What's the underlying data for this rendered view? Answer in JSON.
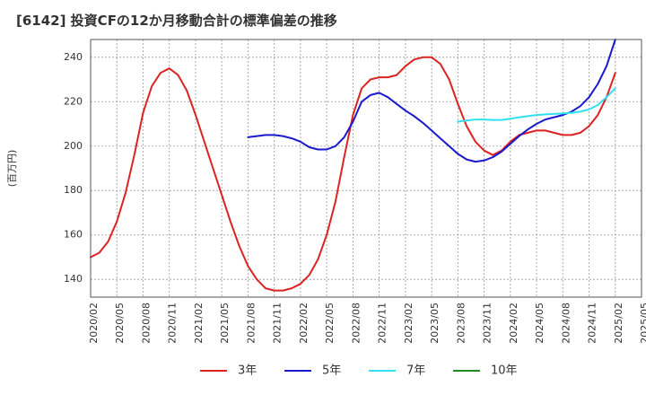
{
  "title": "[6142]  投資CFの12か月移動合計の標準偏差の推移",
  "chart_data": {
    "type": "line",
    "title": "[6142]  投資CFの12か月移動合計の標準偏差の推移",
    "xlabel": "",
    "ylabel": "(百万円)",
    "x_ticks": [
      "2020/02",
      "2020/05",
      "2020/08",
      "2020/11",
      "2021/02",
      "2021/05",
      "2021/08",
      "2021/11",
      "2022/02",
      "2022/05",
      "2022/08",
      "2022/11",
      "2023/02",
      "2023/05",
      "2023/08",
      "2023/11",
      "2024/02",
      "2024/05",
      "2024/08",
      "2024/11",
      "2025/02",
      "2025/05"
    ],
    "y_ticks": [
      140,
      160,
      180,
      200,
      220,
      240
    ],
    "xlim": [
      "2020/02",
      "2025/05"
    ],
    "ylim": [
      132,
      248
    ],
    "grid": true,
    "legend_position": "bottom",
    "series": [
      {
        "name": "3年",
        "color": "#dd2222",
        "points": [
          [
            "2020/02",
            150
          ],
          [
            "2020/03",
            152
          ],
          [
            "2020/04",
            157
          ],
          [
            "2020/05",
            166
          ],
          [
            "2020/06",
            179
          ],
          [
            "2020/07",
            196
          ],
          [
            "2020/08",
            215
          ],
          [
            "2020/09",
            227
          ],
          [
            "2020/10",
            233
          ],
          [
            "2020/11",
            235
          ],
          [
            "2020/12",
            232
          ],
          [
            "2021/01",
            225
          ],
          [
            "2021/02",
            214
          ],
          [
            "2021/03",
            202
          ],
          [
            "2021/04",
            190
          ],
          [
            "2021/05",
            178
          ],
          [
            "2021/06",
            166
          ],
          [
            "2021/07",
            155
          ],
          [
            "2021/08",
            146
          ],
          [
            "2021/09",
            140
          ],
          [
            "2021/10",
            136
          ],
          [
            "2021/11",
            135
          ],
          [
            "2021/12",
            135
          ],
          [
            "2022/01",
            136
          ],
          [
            "2022/02",
            138
          ],
          [
            "2022/03",
            142
          ],
          [
            "2022/04",
            149
          ],
          [
            "2022/05",
            160
          ],
          [
            "2022/06",
            175
          ],
          [
            "2022/07",
            195
          ],
          [
            "2022/08",
            214
          ],
          [
            "2022/09",
            226
          ],
          [
            "2022/10",
            230
          ],
          [
            "2022/11",
            231
          ],
          [
            "2022/12",
            231
          ],
          [
            "2023/01",
            232
          ],
          [
            "2023/02",
            236
          ],
          [
            "2023/03",
            239
          ],
          [
            "2023/04",
            240
          ],
          [
            "2023/05",
            240
          ],
          [
            "2023/06",
            237
          ],
          [
            "2023/07",
            230
          ],
          [
            "2023/08",
            219
          ],
          [
            "2023/09",
            209
          ],
          [
            "2023/10",
            202
          ],
          [
            "2023/11",
            198
          ],
          [
            "2023/12",
            196
          ],
          [
            "2024/01",
            198
          ],
          [
            "2024/02",
            202
          ],
          [
            "2024/03",
            205
          ],
          [
            "2024/04",
            206
          ],
          [
            "2024/05",
            207
          ],
          [
            "2024/06",
            207
          ],
          [
            "2024/07",
            206
          ],
          [
            "2024/08",
            205
          ],
          [
            "2024/09",
            205
          ],
          [
            "2024/10",
            206
          ],
          [
            "2024/11",
            209
          ],
          [
            "2024/12",
            214
          ],
          [
            "2025/01",
            222
          ],
          [
            "2025/02",
            233
          ]
        ]
      },
      {
        "name": "5年",
        "color": "#1a1acc",
        "points": [
          [
            "2021/08",
            204
          ],
          [
            "2021/09",
            204.5
          ],
          [
            "2021/10",
            205
          ],
          [
            "2021/11",
            205
          ],
          [
            "2021/12",
            204.5
          ],
          [
            "2022/01",
            203.5
          ],
          [
            "2022/02",
            202
          ],
          [
            "2022/03",
            199.5
          ],
          [
            "2022/04",
            198.5
          ],
          [
            "2022/05",
            198.5
          ],
          [
            "2022/06",
            200
          ],
          [
            "2022/07",
            204
          ],
          [
            "2022/08",
            211
          ],
          [
            "2022/09",
            220
          ],
          [
            "2022/10",
            223
          ],
          [
            "2022/11",
            224
          ],
          [
            "2022/12",
            222
          ],
          [
            "2023/01",
            219
          ],
          [
            "2023/02",
            216
          ],
          [
            "2023/03",
            213.5
          ],
          [
            "2023/04",
            210.5
          ],
          [
            "2023/05",
            207
          ],
          [
            "2023/06",
            203.5
          ],
          [
            "2023/07",
            200
          ],
          [
            "2023/08",
            196.5
          ],
          [
            "2023/09",
            194
          ],
          [
            "2023/10",
            193
          ],
          [
            "2023/11",
            193.5
          ],
          [
            "2023/12",
            195
          ],
          [
            "2024/01",
            197.5
          ],
          [
            "2024/02",
            201
          ],
          [
            "2024/03",
            204.5
          ],
          [
            "2024/04",
            207.5
          ],
          [
            "2024/05",
            210
          ],
          [
            "2024/06",
            212
          ],
          [
            "2024/07",
            213
          ],
          [
            "2024/08",
            214
          ],
          [
            "2024/09",
            215.5
          ],
          [
            "2024/10",
            218
          ],
          [
            "2024/11",
            222
          ],
          [
            "2024/12",
            228
          ],
          [
            "2025/01",
            236
          ],
          [
            "2025/02",
            248
          ]
        ]
      },
      {
        "name": "7年",
        "color": "#33e0f0",
        "points": [
          [
            "2023/08",
            211
          ],
          [
            "2023/09",
            211.5
          ],
          [
            "2023/10",
            212
          ],
          [
            "2023/11",
            212
          ],
          [
            "2023/12",
            211.8
          ],
          [
            "2024/01",
            211.8
          ],
          [
            "2024/02",
            212.3
          ],
          [
            "2024/03",
            213
          ],
          [
            "2024/04",
            213.5
          ],
          [
            "2024/05",
            214
          ],
          [
            "2024/06",
            214.3
          ],
          [
            "2024/07",
            214.5
          ],
          [
            "2024/08",
            214.7
          ],
          [
            "2024/09",
            215
          ],
          [
            "2024/10",
            215.5
          ],
          [
            "2024/11",
            216.5
          ],
          [
            "2024/12",
            218.5
          ],
          [
            "2025/01",
            222
          ],
          [
            "2025/02",
            226
          ]
        ]
      },
      {
        "name": "10年",
        "color": "#228822",
        "points": []
      }
    ]
  }
}
